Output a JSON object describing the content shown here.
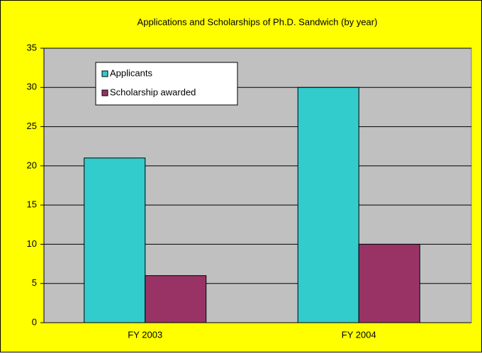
{
  "chart_data": {
    "type": "bar",
    "title": "Applications and Scholarships of Ph.D. Sandwich (by year)",
    "categories": [
      "FY 2003",
      "FY 2004"
    ],
    "series": [
      {
        "name": "Applicants",
        "color": "#33cccc",
        "values": [
          21,
          30
        ]
      },
      {
        "name": "Scholarship awarded",
        "color": "#993366",
        "values": [
          6,
          10
        ]
      }
    ],
    "ylim": [
      0,
      35
    ],
    "yticks": [
      0,
      5,
      10,
      15,
      20,
      25,
      30,
      35
    ],
    "grid": true,
    "legend": "top-left"
  }
}
